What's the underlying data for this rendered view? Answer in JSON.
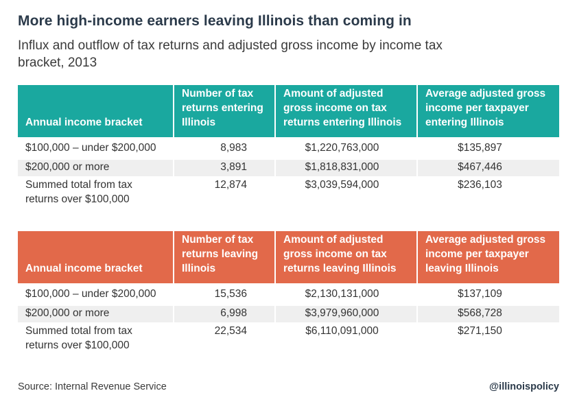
{
  "title": "More high-income earners leaving Illinois than coming in",
  "subtitle": "Influx and outflow of tax returns and adjusted gross income by income tax bracket, 2013",
  "colors": {
    "inflow_header": "#1aa89f",
    "outflow_header": "#e2694a",
    "band_row": "#efefef"
  },
  "chart_data": [
    {
      "type": "table",
      "columns": [
        "Annual income bracket",
        "Number of tax returns entering Illinois",
        "Amount of adjusted gross income on tax returns entering Illinois",
        "Average adjusted gross income per taxpayer entering Illinois"
      ],
      "rows": [
        [
          "$100,000 – under $200,000",
          "8,983",
          "$1,220,763,000",
          "$135,897"
        ],
        [
          "$200,000 or more",
          "3,891",
          "$1,818,831,000",
          "$467,446"
        ],
        [
          "Summed total from tax returns over $100,000",
          "12,874",
          "$3,039,594,000",
          "$236,103"
        ]
      ]
    },
    {
      "type": "table",
      "columns": [
        "Annual income bracket",
        "Number of tax returns leaving Illinois",
        "Amount of adjusted gross income on tax returns leaving Illinois",
        "Average adjusted gross income per taxpayer leaving Illinois"
      ],
      "rows": [
        [
          "$100,000 – under $200,000",
          "15,536",
          "$2,130,131,000",
          "$137,109"
        ],
        [
          "$200,000 or more",
          "6,998",
          "$3,979,960,000",
          "$568,728"
        ],
        [
          "Summed total from tax returns over $100,000",
          "22,534",
          "$6,110,091,000",
          "$271,150"
        ]
      ]
    }
  ],
  "footer": {
    "source": "Source: Internal Revenue Service",
    "handle": "@illinoispolicy"
  }
}
